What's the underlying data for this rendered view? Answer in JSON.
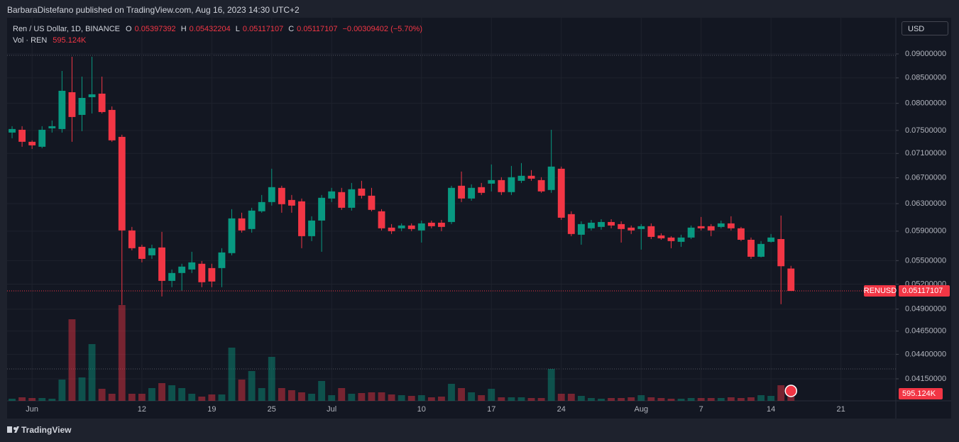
{
  "header": {
    "attribution": "BarbaraDistefano published on TradingView.com, Aug 16, 2023 14:30 UTC+2",
    "logo": "TradingView",
    "currency_button": "USD"
  },
  "chart_data": {
    "type": "candlestick",
    "title": "Ren / US Dollar, 1D, BINANCE",
    "symbol": "RENUSD",
    "ohlc_letters": [
      "O",
      "H",
      "L",
      "C"
    ],
    "change_text": "−0.00309402 (−5.70%)",
    "up_color": "#089981",
    "down_color": "#f23645",
    "log_scale": true,
    "grid": true,
    "x": [
      "2023-05-30",
      "2023-05-31",
      "2023-06-01",
      "2023-06-02",
      "2023-06-03",
      "2023-06-04",
      "2023-06-05",
      "2023-06-06",
      "2023-06-07",
      "2023-06-08",
      "2023-06-09",
      "2023-06-10",
      "2023-06-11",
      "2023-06-12",
      "2023-06-13",
      "2023-06-14",
      "2023-06-15",
      "2023-06-16",
      "2023-06-17",
      "2023-06-18",
      "2023-06-19",
      "2023-06-20",
      "2023-06-21",
      "2023-06-22",
      "2023-06-23",
      "2023-06-24",
      "2023-06-25",
      "2023-06-26",
      "2023-06-27",
      "2023-06-28",
      "2023-06-29",
      "2023-06-30",
      "2023-07-01",
      "2023-07-02",
      "2023-07-03",
      "2023-07-04",
      "2023-07-05",
      "2023-07-06",
      "2023-07-07",
      "2023-07-08",
      "2023-07-09",
      "2023-07-10",
      "2023-07-11",
      "2023-07-12",
      "2023-07-13",
      "2023-07-14",
      "2023-07-15",
      "2023-07-16",
      "2023-07-17",
      "2023-07-18",
      "2023-07-19",
      "2023-07-20",
      "2023-07-21",
      "2023-07-22",
      "2023-07-23",
      "2023-07-24",
      "2023-07-25",
      "2023-07-26",
      "2023-07-27",
      "2023-07-28",
      "2023-07-29",
      "2023-07-30",
      "2023-07-31",
      "2023-08-01",
      "2023-08-02",
      "2023-08-03",
      "2023-08-04",
      "2023-08-05",
      "2023-08-06",
      "2023-08-07",
      "2023-08-08",
      "2023-08-09",
      "2023-08-10",
      "2023-08-11",
      "2023-08-12",
      "2023-08-13",
      "2023-08-14",
      "2023-08-15",
      "2023-08-16"
    ],
    "open": [
      0.07462,
      0.07512,
      0.073,
      0.07214,
      0.07538,
      0.07525,
      0.08215,
      0.07783,
      0.08118,
      0.08187,
      0.07876,
      0.07386,
      0.0591,
      0.05684,
      0.0557,
      0.05675,
      0.05241,
      0.0534,
      0.05385,
      0.05459,
      0.05403,
      0.05403,
      0.05599,
      0.06082,
      0.0593,
      0.06186,
      0.06323,
      0.06541,
      0.06355,
      0.06334,
      0.0583,
      0.06051,
      0.06377,
      0.06475,
      0.06238,
      0.0653,
      0.0642,
      0.06186,
      0.0595,
      0.0594,
      0.0598,
      0.0591,
      0.0602,
      0.0602,
      0.0603,
      0.06574,
      0.06377,
      0.06552,
      0.06607,
      0.06663,
      0.06475,
      0.06652,
      0.06732,
      0.06663,
      0.06508,
      0.06846,
      0.06144,
      0.0585,
      0.0594,
      0.0596,
      0.0603,
      0.06,
      0.0595,
      0.0593,
      0.0597,
      0.0584,
      0.05811,
      0.05752,
      0.05811,
      0.0597,
      0.0597,
      0.0596,
      0.0601,
      0.0594,
      0.0578,
      0.05551,
      0.05752,
      0.0579,
      0.05397392
    ],
    "high": [
      0.07576,
      0.07576,
      0.07325,
      0.07576,
      0.07679,
      0.08642,
      0.08939,
      0.08526,
      0.08939,
      0.08526,
      0.07942,
      0.07424,
      0.0596,
      0.05713,
      0.05713,
      0.0589,
      0.05385,
      0.05459,
      0.05617,
      0.05495,
      0.05459,
      0.05665,
      0.06217,
      0.06165,
      0.06238,
      0.06431,
      0.06846,
      0.06574,
      0.06431,
      0.06377,
      0.06113,
      0.06431,
      0.06541,
      0.06541,
      0.06618,
      0.06652,
      0.06541,
      0.06217,
      0.06,
      0.0601,
      0.0601,
      0.06051,
      0.0605,
      0.0606,
      0.06574,
      0.068,
      0.06596,
      0.06618,
      0.06916,
      0.06709,
      0.06892,
      0.06939,
      0.06823,
      0.06709,
      0.07512,
      0.06881,
      0.06186,
      0.0604,
      0.0606,
      0.0607,
      0.0607,
      0.0604,
      0.0598,
      0.06,
      0.0601,
      0.0587,
      0.0583,
      0.0585,
      0.0598,
      0.06103,
      0.06,
      0.0605,
      0.06113,
      0.0596,
      0.05811,
      0.05762,
      0.0586,
      0.06123,
      0.05432204
    ],
    "low": [
      0.07361,
      0.07214,
      0.07177,
      0.07189,
      0.07462,
      0.07462,
      0.073,
      0.07487,
      0.07809,
      0.07809,
      0.073,
      0.04949,
      0.05636,
      0.05477,
      0.05523,
      0.0505,
      0.05163,
      0.05119,
      0.0534,
      0.05163,
      0.05163,
      0.05163,
      0.0557,
      0.0588,
      0.0588,
      0.06165,
      0.0627,
      0.06165,
      0.06165,
      0.05665,
      0.05762,
      0.05617,
      0.06323,
      0.06207,
      0.06196,
      0.06377,
      0.06186,
      0.0591,
      0.0586,
      0.059,
      0.059,
      0.05742,
      0.0594,
      0.059,
      0.06,
      0.06323,
      0.06344,
      0.06431,
      0.06486,
      0.06431,
      0.06431,
      0.06618,
      0.06652,
      0.06464,
      0.06464,
      0.06061,
      0.0583,
      0.05713,
      0.0591,
      0.0592,
      0.0594,
      0.05742,
      0.0586,
      0.05646,
      0.0579,
      0.0578,
      0.05665,
      0.05684,
      0.0579,
      0.0591,
      0.0583,
      0.0594,
      0.0591,
      0.05762,
      0.05523,
      0.05542,
      0.05742,
      0.04958,
      0.05117107
    ],
    "close": [
      0.07525,
      0.073,
      0.07238,
      0.07512,
      0.07576,
      0.08243,
      0.07744,
      0.08104,
      0.08174,
      0.07836,
      0.07325,
      0.0591,
      0.05665,
      0.05523,
      0.05665,
      0.05241,
      0.0534,
      0.05422,
      0.05477,
      0.05224,
      0.05233,
      0.05608,
      0.06082,
      0.0591,
      0.06196,
      0.06323,
      0.06552,
      0.06291,
      0.0627,
      0.0583,
      0.06051,
      0.06388,
      0.06486,
      0.06238,
      0.06519,
      0.0642,
      0.06207,
      0.0594,
      0.059,
      0.0598,
      0.0593,
      0.0601,
      0.0597,
      0.0596,
      0.06541,
      0.06377,
      0.06541,
      0.06464,
      0.06663,
      0.06475,
      0.06709,
      0.06732,
      0.06686,
      0.06486,
      0.06881,
      0.06092,
      0.0586,
      0.06,
      0.0602,
      0.0603,
      0.0598,
      0.0593,
      0.0591,
      0.0597,
      0.0582,
      0.058,
      0.05762,
      0.05811,
      0.0595,
      0.0594,
      0.0591,
      0.0601,
      0.0594,
      0.0578,
      0.05551,
      0.05723,
      0.05811,
      0.05427,
      0.05117107
    ],
    "volume": {
      "name": "Vol · REN",
      "label": "595.124K",
      "values": [
        81000,
        135000,
        108000,
        108000,
        81000,
        810000,
        3105000,
        891000,
        2160000,
        459000,
        270000,
        3645000,
        270000,
        270000,
        486000,
        675000,
        594000,
        486000,
        270000,
        162000,
        243000,
        243000,
        2025000,
        810000,
        1134000,
        486000,
        1674000,
        486000,
        405000,
        324000,
        270000,
        756000,
        216000,
        486000,
        270000,
        297000,
        324000,
        324000,
        243000,
        216000,
        189000,
        216000,
        135000,
        162000,
        648000,
        486000,
        324000,
        216000,
        459000,
        135000,
        135000,
        135000,
        108000,
        108000,
        1215000,
        270000,
        270000,
        189000,
        108000,
        81000,
        108000,
        108000,
        135000,
        216000,
        135000,
        108000,
        81000,
        81000,
        108000,
        108000,
        108000,
        108000,
        135000,
        108000,
        135000,
        216000,
        189000,
        594000,
        595124
      ]
    },
    "xlim": [
      "2023-05-30",
      "2023-08-26"
    ],
    "xticks": [
      {
        "value": "2023-06-01",
        "label": "Jun"
      },
      {
        "value": "2023-06-12",
        "label": "12"
      },
      {
        "value": "2023-06-19",
        "label": "19"
      },
      {
        "value": "2023-06-25",
        "label": "25"
      },
      {
        "value": "2023-07-01",
        "label": "Jul"
      },
      {
        "value": "2023-07-10",
        "label": "10"
      },
      {
        "value": "2023-07-17",
        "label": "17"
      },
      {
        "value": "2023-07-24",
        "label": "24"
      },
      {
        "value": "2023-08-01",
        "label": "Aug"
      },
      {
        "value": "2023-08-07",
        "label": "7"
      },
      {
        "value": "2023-08-14",
        "label": "14"
      },
      {
        "value": "2023-08-21",
        "label": "21"
      }
    ],
    "ylim": [
      0.03938,
      0.0981
    ],
    "yticks": [
      {
        "value": 0.09,
        "label": "0.09000000"
      },
      {
        "value": 0.085,
        "label": "0.08500000"
      },
      {
        "value": 0.08,
        "label": "0.08000000"
      },
      {
        "value": 0.075,
        "label": "0.07500000"
      },
      {
        "value": 0.071,
        "label": "0.07100000"
      },
      {
        "value": 0.067,
        "label": "0.06700000"
      },
      {
        "value": 0.063,
        "label": "0.06300000"
      },
      {
        "value": 0.059,
        "label": "0.05900000"
      },
      {
        "value": 0.055,
        "label": "0.05500000"
      },
      {
        "value": 0.052,
        "label": "0.05200000"
      },
      {
        "value": 0.049,
        "label": "0.04900000"
      },
      {
        "value": 0.0465,
        "label": "0.04650000"
      },
      {
        "value": 0.044,
        "label": "0.04400000"
      },
      {
        "value": 0.0415,
        "label": "0.04150000"
      }
    ]
  }
}
